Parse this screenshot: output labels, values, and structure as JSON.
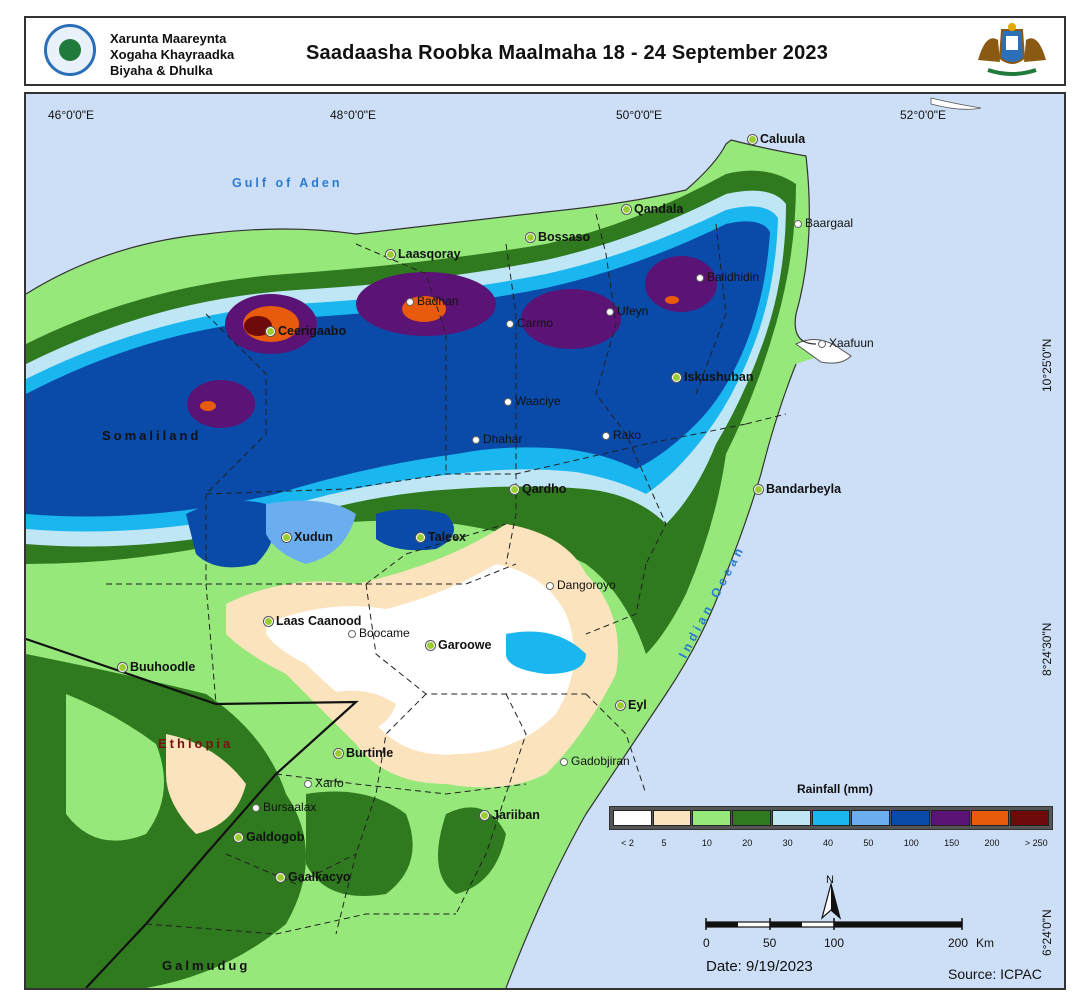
{
  "header": {
    "org_lines": [
      "Xarunta Maareynta",
      "Xogaha Khayraadka",
      "Biyaha & Dhulka"
    ],
    "title": "Saadaasha Roobka Maalmaha 18 - 24  September 2023",
    "org_logo_icon": "hydrology-center-seal",
    "emblem_icon": "puntland-coat-of-arms"
  },
  "map": {
    "coords_top": [
      "46°0'0\"E",
      "48°0'0\"E",
      "50°0'0\"E",
      "52°0'0\"E"
    ],
    "coords_right": [
      "10°25'0\"N",
      "8°24'30\"N",
      "6°24'0\"N"
    ],
    "water_bodies": [
      "Gulf of Aden",
      "Indian Ocean"
    ],
    "regions": [
      "Somaliland",
      "Ethiopia",
      "Galmudug"
    ],
    "places": [
      {
        "name": "Caluula",
        "type": "major"
      },
      {
        "name": "Qandala",
        "type": "major"
      },
      {
        "name": "Baargaal",
        "type": "minor"
      },
      {
        "name": "Bossaso",
        "type": "major"
      },
      {
        "name": "Laasqoray",
        "type": "major"
      },
      {
        "name": "Badhan",
        "type": "minor"
      },
      {
        "name": "Balidhidin",
        "type": "minor"
      },
      {
        "name": "Ceerigaabo",
        "type": "major"
      },
      {
        "name": "Carmo",
        "type": "minor"
      },
      {
        "name": "Ufeyn",
        "type": "minor"
      },
      {
        "name": "Xaafuun",
        "type": "minor"
      },
      {
        "name": "Iskushuban",
        "type": "major"
      },
      {
        "name": "Waaciye",
        "type": "minor"
      },
      {
        "name": "Rako",
        "type": "minor"
      },
      {
        "name": "Dhahar",
        "type": "minor"
      },
      {
        "name": "Qardho",
        "type": "major"
      },
      {
        "name": "Bandarbeyla",
        "type": "major"
      },
      {
        "name": "Xudun",
        "type": "major"
      },
      {
        "name": "Taleex",
        "type": "major"
      },
      {
        "name": "Dangoroyo",
        "type": "minor"
      },
      {
        "name": "Laas Caanood",
        "type": "major"
      },
      {
        "name": "Boocame",
        "type": "minor"
      },
      {
        "name": "Garoowe",
        "type": "major"
      },
      {
        "name": "Buuhoodle",
        "type": "major"
      },
      {
        "name": "Eyl",
        "type": "major"
      },
      {
        "name": "Burtinle",
        "type": "major"
      },
      {
        "name": "Gadobjiran",
        "type": "minor"
      },
      {
        "name": "Xarfo",
        "type": "minor"
      },
      {
        "name": "Bursaalax",
        "type": "minor"
      },
      {
        "name": "Galdogob",
        "type": "major"
      },
      {
        "name": "Jariiban",
        "type": "major"
      },
      {
        "name": "Gaalkacyo",
        "type": "major"
      }
    ]
  },
  "legend": {
    "title": "Rainfall (mm)",
    "classes": [
      {
        "label": "< 2",
        "color": "#ffffff"
      },
      {
        "label": "5",
        "color": "#fbe3bd"
      },
      {
        "label": "10",
        "color": "#97e87a"
      },
      {
        "label": "20",
        "color": "#2f7a1f"
      },
      {
        "label": "30",
        "color": "#bfe6f5"
      },
      {
        "label": "40",
        "color": "#19b6ef"
      },
      {
        "label": "50",
        "color": "#6aaef0"
      },
      {
        "label": "100",
        "color": "#0a4aa8"
      },
      {
        "label": "150",
        "color": "#5b1475"
      },
      {
        "label": "200",
        "color": "#e85a0c"
      },
      {
        "label": "> 250",
        "color": "#6e0a0a"
      }
    ]
  },
  "scale": {
    "ticks": [
      "0",
      "50",
      "100",
      "200"
    ],
    "unit": "Km",
    "north": "N"
  },
  "footer": {
    "date": "Date: 9/19/2023",
    "source": "Source: ICPAC"
  }
}
